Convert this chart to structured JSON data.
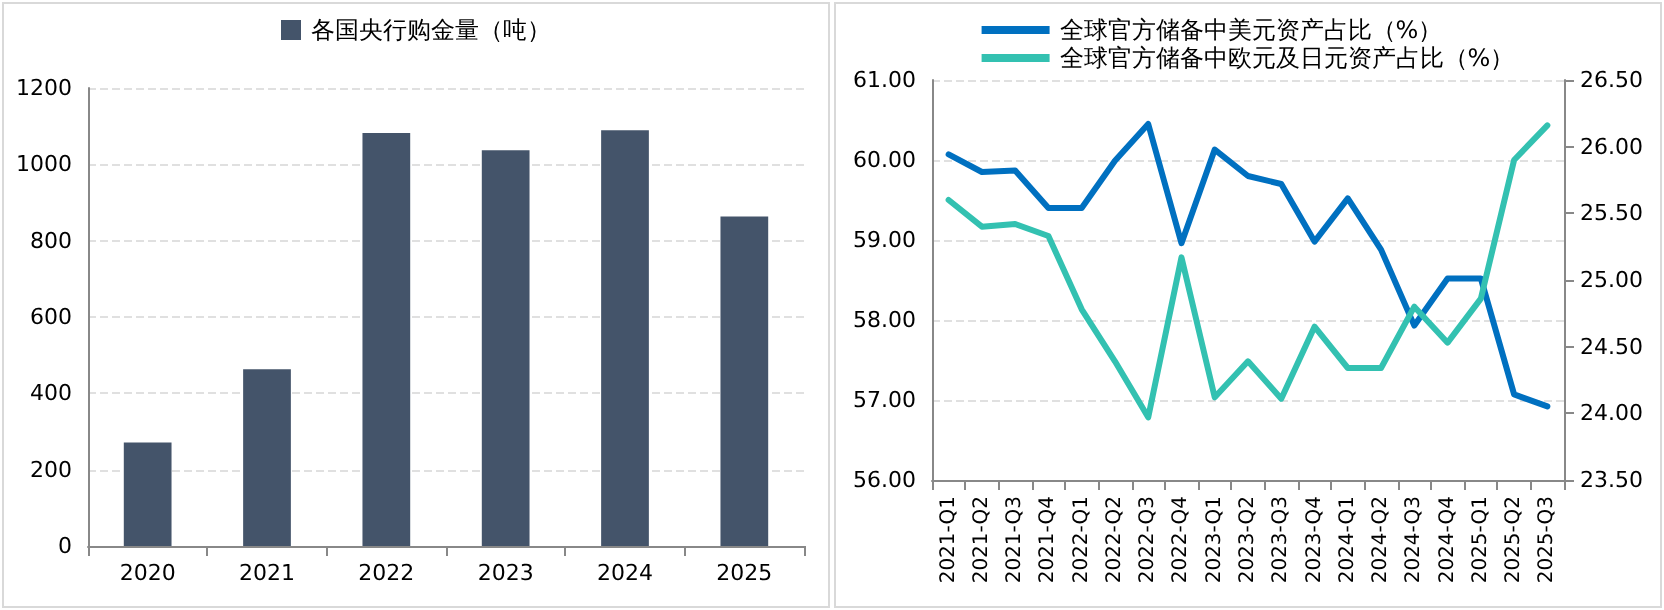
{
  "chart_data": [
    {
      "type": "bar",
      "categories": [
        "2020",
        "2021",
        "2022",
        "2023",
        "2024",
        "2025"
      ],
      "series": [
        {
          "name": "各国央行购金量（吨）",
          "color": "#44546a",
          "values": [
            271,
            463,
            1082,
            1037,
            1089,
            863
          ]
        }
      ],
      "ylim": [
        0,
        1200
      ],
      "yticks": [
        0,
        200,
        400,
        600,
        800,
        1000,
        1200
      ],
      "grid": "y",
      "legend": "top"
    },
    {
      "type": "line",
      "categories": [
        "2021-Q1",
        "2021-Q2",
        "2021-Q3",
        "2021-Q4",
        "2022-Q1",
        "2022-Q2",
        "2022-Q3",
        "2022-Q4",
        "2023-Q1",
        "2023-Q2",
        "2023-Q3",
        "2023-Q4",
        "2024-Q1",
        "2024-Q2",
        "2024-Q3",
        "2024-Q4",
        "2025-Q1",
        "2025-Q2",
        "2025-Q3"
      ],
      "series": [
        {
          "name": "全球官方储备中美元资产占比（%）",
          "color": "#0070c0",
          "values": [
            60.07,
            59.85,
            59.87,
            59.4,
            59.4,
            59.99,
            60.45,
            58.96,
            60.13,
            59.8,
            59.7,
            58.98,
            59.52,
            58.88,
            57.93,
            58.52,
            58.52,
            57.07,
            56.92
          ]
        },
        {
          "name": "全球官方储备中欧元及日元资产占比（%）",
          "color": "#33c1b1",
          "axis": "y2",
          "values": [
            25.6,
            25.4,
            25.42,
            25.33,
            24.78,
            24.39,
            23.97,
            25.17,
            24.12,
            24.39,
            24.11,
            24.65,
            24.34,
            24.34,
            24.8,
            24.53,
            24.86,
            25.9,
            26.16
          ]
        }
      ],
      "ylim": [
        56,
        61
      ],
      "yticks": [
        {
          "value": 56,
          "label": "56.00"
        },
        {
          "value": 57,
          "label": "57.00"
        },
        {
          "value": 58,
          "label": "58.00"
        },
        {
          "value": 59,
          "label": "59.00"
        },
        {
          "value": 60,
          "label": "60.00"
        },
        {
          "value": 61,
          "label": "61.00"
        }
      ],
      "y2lim": [
        23.5,
        26.5
      ],
      "y2ticks": [
        {
          "value": 23.5,
          "label": "23.50"
        },
        {
          "value": 24,
          "label": "24.00"
        },
        {
          "value": 24.5,
          "label": "24.50"
        },
        {
          "value": 25,
          "label": "25.00"
        },
        {
          "value": 25.5,
          "label": "25.50"
        },
        {
          "value": 26,
          "label": "26.00"
        },
        {
          "value": 26.5,
          "label": "26.50"
        }
      ],
      "grid": "y",
      "legend": "top",
      "marker": "none",
      "line_style": "solid"
    }
  ]
}
